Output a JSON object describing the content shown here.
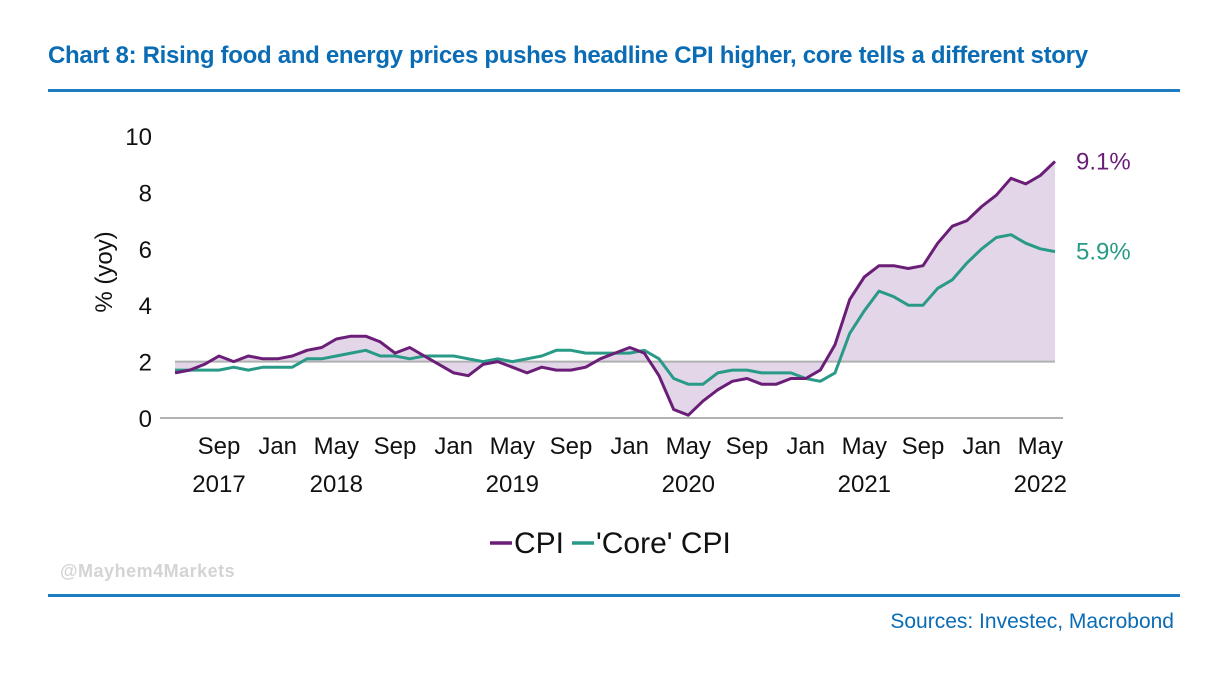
{
  "header": {
    "title": "Chart 8: Rising food and energy prices pushes headline CPI higher, core tells a different story"
  },
  "footer": {
    "source": "Sources: Investec, Macrobond",
    "watermark": "@Mayhem4Markets"
  },
  "colors": {
    "cpi": "#6b1e78",
    "core": "#2a9a88",
    "fill": "#e2d6e8",
    "accent": "#0a6cb4",
    "reference": "#b0b0b0"
  },
  "chart_data": {
    "type": "line",
    "title": "Chart 8: Rising food and energy prices pushes headline CPI higher, core tells a different story",
    "ylabel": "% (yoy)",
    "ylim": [
      0,
      10
    ],
    "yticks": [
      0,
      2,
      4,
      6,
      8,
      10
    ],
    "reference_line": 2,
    "shading": "area between CPI and 2% line",
    "x": [
      "2017-06",
      "2017-07",
      "2017-08",
      "2017-09",
      "2017-10",
      "2017-11",
      "2017-12",
      "2018-01",
      "2018-02",
      "2018-03",
      "2018-04",
      "2018-05",
      "2018-06",
      "2018-07",
      "2018-08",
      "2018-09",
      "2018-10",
      "2018-11",
      "2018-12",
      "2019-01",
      "2019-02",
      "2019-03",
      "2019-04",
      "2019-05",
      "2019-06",
      "2019-07",
      "2019-08",
      "2019-09",
      "2019-10",
      "2019-11",
      "2019-12",
      "2020-01",
      "2020-02",
      "2020-03",
      "2020-04",
      "2020-05",
      "2020-06",
      "2020-07",
      "2020-08",
      "2020-09",
      "2020-10",
      "2020-11",
      "2020-12",
      "2021-01",
      "2021-02",
      "2021-03",
      "2021-04",
      "2021-05",
      "2021-06",
      "2021-07",
      "2021-08",
      "2021-09",
      "2021-10",
      "2021-11",
      "2021-12",
      "2022-01",
      "2022-02",
      "2022-03",
      "2022-04",
      "2022-05",
      "2022-06"
    ],
    "xticks": [
      {
        "date": "2017-09",
        "month": "Sep",
        "year": "2017"
      },
      {
        "date": "2018-01",
        "month": "Jan",
        "year": ""
      },
      {
        "date": "2018-05",
        "month": "May",
        "year": "2018"
      },
      {
        "date": "2018-09",
        "month": "Sep",
        "year": ""
      },
      {
        "date": "2019-01",
        "month": "Jan",
        "year": ""
      },
      {
        "date": "2019-05",
        "month": "May",
        "year": "2019"
      },
      {
        "date": "2019-09",
        "month": "Sep",
        "year": ""
      },
      {
        "date": "2020-01",
        "month": "Jan",
        "year": ""
      },
      {
        "date": "2020-05",
        "month": "May",
        "year": "2020"
      },
      {
        "date": "2020-09",
        "month": "Sep",
        "year": ""
      },
      {
        "date": "2021-01",
        "month": "Jan",
        "year": ""
      },
      {
        "date": "2021-05",
        "month": "May",
        "year": "2021"
      },
      {
        "date": "2021-09",
        "month": "Sep",
        "year": ""
      },
      {
        "date": "2022-01",
        "month": "Jan",
        "year": ""
      },
      {
        "date": "2022-05",
        "month": "May",
        "year": "2022"
      }
    ],
    "series": [
      {
        "name": "CPI",
        "values": [
          1.6,
          1.7,
          1.9,
          2.2,
          2.0,
          2.2,
          2.1,
          2.1,
          2.2,
          2.4,
          2.5,
          2.8,
          2.9,
          2.9,
          2.7,
          2.3,
          2.5,
          2.2,
          1.9,
          1.6,
          1.5,
          1.9,
          2.0,
          1.8,
          1.6,
          1.8,
          1.7,
          1.7,
          1.8,
          2.1,
          2.3,
          2.5,
          2.3,
          1.5,
          0.3,
          0.1,
          0.6,
          1.0,
          1.3,
          1.4,
          1.2,
          1.2,
          1.4,
          1.4,
          1.7,
          2.6,
          4.2,
          5.0,
          5.4,
          5.4,
          5.3,
          5.4,
          6.2,
          6.8,
          7.0,
          7.5,
          7.9,
          8.5,
          8.3,
          8.6,
          9.1
        ]
      },
      {
        "name": "'Core' CPI",
        "values": [
          1.7,
          1.7,
          1.7,
          1.7,
          1.8,
          1.7,
          1.8,
          1.8,
          1.8,
          2.1,
          2.1,
          2.2,
          2.3,
          2.4,
          2.2,
          2.2,
          2.1,
          2.2,
          2.2,
          2.2,
          2.1,
          2.0,
          2.1,
          2.0,
          2.1,
          2.2,
          2.4,
          2.4,
          2.3,
          2.3,
          2.3,
          2.3,
          2.4,
          2.1,
          1.4,
          1.2,
          1.2,
          1.6,
          1.7,
          1.7,
          1.6,
          1.6,
          1.6,
          1.4,
          1.3,
          1.6,
          3.0,
          3.8,
          4.5,
          4.3,
          4.0,
          4.0,
          4.6,
          4.9,
          5.5,
          6.0,
          6.4,
          6.5,
          6.2,
          6.0,
          5.9
        ]
      }
    ],
    "end_labels": [
      {
        "series": "CPI",
        "text": "9.1%"
      },
      {
        "series": "'Core' CPI",
        "text": "5.9%"
      }
    ],
    "legend": {
      "position": "bottom-center",
      "items": [
        {
          "series": "CPI",
          "label": "CPI"
        },
        {
          "series": "'Core' CPI",
          "label": "'Core' CPI"
        }
      ]
    },
    "grid": false
  }
}
